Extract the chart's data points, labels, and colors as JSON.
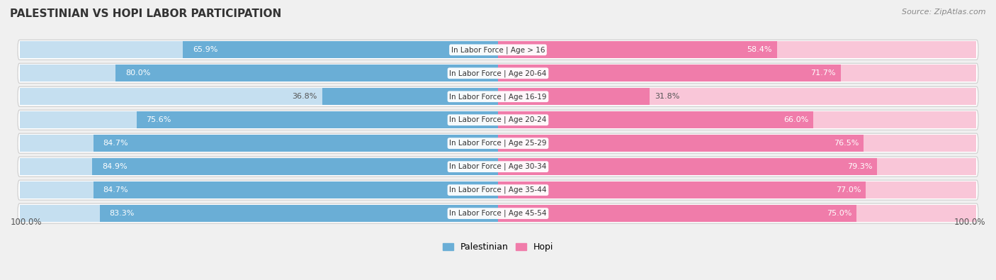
{
  "title": "PALESTINIAN VS HOPI LABOR PARTICIPATION",
  "source": "Source: ZipAtlas.com",
  "categories": [
    "In Labor Force | Age > 16",
    "In Labor Force | Age 20-64",
    "In Labor Force | Age 16-19",
    "In Labor Force | Age 20-24",
    "In Labor Force | Age 25-29",
    "In Labor Force | Age 30-34",
    "In Labor Force | Age 35-44",
    "In Labor Force | Age 45-54"
  ],
  "palestinian_values": [
    65.9,
    80.0,
    36.8,
    75.6,
    84.7,
    84.9,
    84.7,
    83.3
  ],
  "hopi_values": [
    58.4,
    71.7,
    31.8,
    66.0,
    76.5,
    79.3,
    77.0,
    75.0
  ],
  "palestinian_color": "#6aaed6",
  "hopi_color": "#f07caa",
  "palestinian_color_light": "#c5dff0",
  "hopi_color_light": "#f9c6d8",
  "bg_color": "#f0f0f0",
  "row_bg_color": "#e8e8e8",
  "row_inner_bg": "#f5f5f5",
  "max_value": 100.0,
  "legend_labels": [
    "Palestinian",
    "Hopi"
  ],
  "bottom_label": "100.0%"
}
